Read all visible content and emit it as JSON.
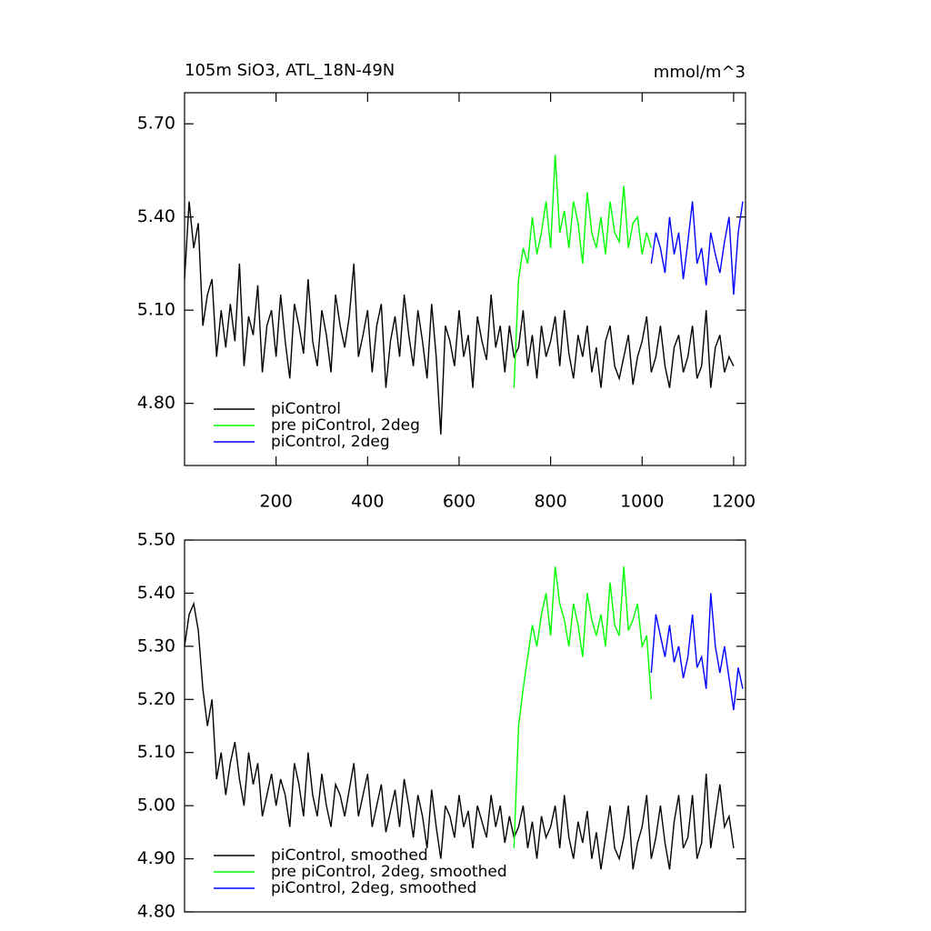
{
  "chart_data": [
    {
      "type": "line",
      "title": "105m SiO3, ATL_18N-49N",
      "units": "mmol/m^3",
      "xlim": [
        0,
        1226
      ],
      "xticks": [
        200,
        400,
        600,
        800,
        1000,
        1200
      ],
      "ylim": [
        4.6,
        5.8
      ],
      "yticks": [
        {
          "value": 4.8,
          "label": "4.80"
        },
        {
          "value": 5.1,
          "label": "5.10"
        },
        {
          "value": 5.4,
          "label": "5.40"
        },
        {
          "value": 5.7,
          "label": "5.70"
        }
      ],
      "legend": "lower left",
      "series": [
        {
          "name": "piControl",
          "color": "#000000",
          "x": [
            0,
            10,
            20,
            30,
            40,
            50,
            60,
            70,
            80,
            90,
            100,
            110,
            120,
            130,
            140,
            150,
            160,
            170,
            180,
            190,
            200,
            210,
            220,
            230,
            240,
            250,
            260,
            270,
            280,
            290,
            300,
            310,
            320,
            330,
            340,
            350,
            360,
            370,
            380,
            390,
            400,
            410,
            420,
            430,
            440,
            450,
            460,
            470,
            480,
            490,
            500,
            510,
            520,
            530,
            540,
            550,
            560,
            570,
            580,
            590,
            600,
            610,
            620,
            630,
            640,
            650,
            660,
            670,
            680,
            690,
            700,
            710,
            720,
            730,
            740,
            750,
            760,
            770,
            780,
            790,
            800,
            810,
            820,
            830,
            840,
            850,
            860,
            870,
            880,
            890,
            900,
            910,
            920,
            930,
            940,
            950,
            960,
            970,
            980,
            990,
            1000,
            1010,
            1020,
            1030,
            1040,
            1050,
            1060,
            1070,
            1080,
            1090,
            1100,
            1110,
            1120,
            1130,
            1140,
            1150,
            1160,
            1170,
            1180,
            1190,
            1200
          ],
          "values": [
            5.2,
            5.45,
            5.3,
            5.38,
            5.05,
            5.15,
            5.2,
            4.95,
            5.1,
            4.98,
            5.12,
            5.0,
            5.25,
            4.92,
            5.08,
            5.02,
            5.18,
            4.9,
            5.05,
            5.1,
            4.95,
            5.15,
            5.0,
            4.88,
            5.12,
            5.05,
            4.96,
            5.2,
            5.0,
            4.92,
            5.1,
            5.02,
            4.9,
            5.15,
            5.05,
            4.98,
            5.08,
            5.25,
            4.95,
            5.02,
            5.1,
            4.9,
            5.05,
            5.12,
            4.85,
            5.0,
            5.08,
            4.95,
            5.15,
            5.02,
            4.92,
            5.1,
            5.0,
            4.88,
            5.12,
            4.95,
            4.7,
            5.05,
            5.0,
            4.92,
            5.1,
            4.95,
            5.02,
            4.85,
            5.08,
            5.0,
            4.94,
            5.15,
            4.98,
            5.05,
            4.9,
            5.05,
            4.95,
            4.98,
            5.1,
            4.92,
            5.02,
            4.88,
            5.05,
            4.95,
            5.0,
            5.08,
            4.92,
            5.1,
            4.96,
            4.88,
            5.02,
            4.95,
            5.05,
            4.9,
            4.98,
            4.85,
            5.0,
            5.05,
            4.92,
            4.88,
            4.95,
            5.02,
            4.86,
            4.95,
            5.0,
            5.08,
            4.9,
            4.95,
            5.05,
            4.92,
            4.85,
            4.98,
            5.02,
            4.9,
            4.95,
            5.05,
            4.88,
            4.92,
            5.1,
            4.85,
            4.98,
            5.02,
            4.9,
            4.95,
            4.92
          ]
        },
        {
          "name": "pre piControl, 2deg",
          "color": "#00ff00",
          "x": [
            720,
            730,
            740,
            750,
            760,
            770,
            780,
            790,
            800,
            810,
            820,
            830,
            840,
            850,
            860,
            870,
            880,
            890,
            900,
            910,
            920,
            930,
            940,
            950,
            960,
            970,
            980,
            990,
            1000,
            1010,
            1020
          ],
          "values": [
            4.85,
            5.2,
            5.3,
            5.25,
            5.4,
            5.28,
            5.35,
            5.45,
            5.3,
            5.6,
            5.35,
            5.42,
            5.3,
            5.45,
            5.38,
            5.25,
            5.48,
            5.35,
            5.3,
            5.4,
            5.28,
            5.45,
            5.35,
            5.32,
            5.5,
            5.3,
            5.38,
            5.4,
            5.28,
            5.35,
            5.3
          ]
        },
        {
          "name": "piControl, 2deg",
          "color": "#0000ff",
          "x": [
            1020,
            1030,
            1040,
            1050,
            1060,
            1070,
            1080,
            1090,
            1100,
            1110,
            1120,
            1130,
            1140,
            1150,
            1160,
            1170,
            1180,
            1190,
            1200,
            1210,
            1220
          ],
          "values": [
            5.25,
            5.35,
            5.3,
            5.22,
            5.4,
            5.28,
            5.35,
            5.2,
            5.32,
            5.45,
            5.25,
            5.3,
            5.18,
            5.35,
            5.28,
            5.22,
            5.32,
            5.4,
            5.15,
            5.35,
            5.45
          ]
        }
      ]
    },
    {
      "type": "line",
      "xlim": [
        0,
        1226
      ],
      "ylim": [
        4.8,
        5.5
      ],
      "yticks": [
        {
          "value": 4.8,
          "label": "4.80"
        },
        {
          "value": 4.9,
          "label": "4.90"
        },
        {
          "value": 5.0,
          "label": "5.00"
        },
        {
          "value": 5.1,
          "label": "5.10"
        },
        {
          "value": 5.2,
          "label": "5.20"
        },
        {
          "value": 5.3,
          "label": "5.30"
        },
        {
          "value": 5.4,
          "label": "5.40"
        },
        {
          "value": 5.5,
          "label": "5.50"
        }
      ],
      "legend": "lower left",
      "series": [
        {
          "name": "piControl, smoothed",
          "color": "#000000",
          "x": [
            0,
            10,
            20,
            30,
            40,
            50,
            60,
            70,
            80,
            90,
            100,
            110,
            120,
            130,
            140,
            150,
            160,
            170,
            180,
            190,
            200,
            210,
            220,
            230,
            240,
            250,
            260,
            270,
            280,
            290,
            300,
            310,
            320,
            330,
            340,
            350,
            360,
            370,
            380,
            390,
            400,
            410,
            420,
            430,
            440,
            450,
            460,
            470,
            480,
            490,
            500,
            510,
            520,
            530,
            540,
            550,
            560,
            570,
            580,
            590,
            600,
            610,
            620,
            630,
            640,
            650,
            660,
            670,
            680,
            690,
            700,
            710,
            720,
            730,
            740,
            750,
            760,
            770,
            780,
            790,
            800,
            810,
            820,
            830,
            840,
            850,
            860,
            870,
            880,
            890,
            900,
            910,
            920,
            930,
            940,
            950,
            960,
            970,
            980,
            990,
            1000,
            1010,
            1020,
            1030,
            1040,
            1050,
            1060,
            1070,
            1080,
            1090,
            1100,
            1110,
            1120,
            1130,
            1140,
            1150,
            1160,
            1170,
            1180,
            1190,
            1200
          ],
          "values": [
            5.3,
            5.36,
            5.38,
            5.33,
            5.22,
            5.15,
            5.2,
            5.05,
            5.1,
            5.02,
            5.08,
            5.12,
            5.05,
            5.0,
            5.1,
            5.04,
            5.08,
            4.98,
            5.02,
            5.06,
            5.0,
            5.05,
            5.02,
            4.96,
            5.08,
            5.04,
            4.98,
            5.1,
            5.02,
            4.98,
            5.06,
            5.0,
            4.96,
            5.04,
            5.02,
            4.98,
            5.03,
            5.08,
            4.98,
            5.02,
            5.06,
            4.96,
            5.0,
            5.04,
            4.95,
            4.99,
            5.03,
            4.96,
            5.05,
            5.0,
            4.94,
            5.02,
            4.98,
            4.92,
            5.03,
            4.96,
            4.9,
            5.0,
            4.98,
            4.94,
            5.02,
            4.96,
            4.99,
            4.92,
            5.0,
            4.97,
            4.94,
            5.02,
            4.96,
            5.0,
            4.93,
            4.98,
            4.94,
            4.96,
            5.0,
            4.92,
            4.97,
            4.9,
            4.98,
            4.94,
            4.96,
            5.0,
            4.92,
            5.02,
            4.94,
            4.9,
            4.97,
            4.93,
            4.99,
            4.9,
            4.95,
            4.88,
            4.94,
            5.0,
            4.92,
            4.9,
            4.94,
            5.0,
            4.88,
            4.93,
            4.96,
            5.02,
            4.9,
            4.94,
            5.0,
            4.93,
            4.88,
            4.97,
            5.02,
            4.92,
            4.94,
            5.02,
            4.9,
            4.93,
            5.06,
            4.92,
            4.98,
            5.04,
            4.96,
            4.98,
            4.92
          ]
        },
        {
          "name": "pre piControl, 2deg, smoothed",
          "color": "#00ff00",
          "x": [
            720,
            730,
            740,
            750,
            760,
            770,
            780,
            790,
            800,
            810,
            820,
            830,
            840,
            850,
            860,
            870,
            880,
            890,
            900,
            910,
            920,
            930,
            940,
            950,
            960,
            970,
            980,
            990,
            1000,
            1010,
            1020
          ],
          "values": [
            4.92,
            5.15,
            5.22,
            5.28,
            5.34,
            5.3,
            5.36,
            5.4,
            5.32,
            5.45,
            5.38,
            5.35,
            5.3,
            5.38,
            5.34,
            5.28,
            5.4,
            5.35,
            5.32,
            5.36,
            5.3,
            5.42,
            5.34,
            5.32,
            5.45,
            5.33,
            5.35,
            5.38,
            5.3,
            5.32,
            5.2
          ]
        },
        {
          "name": "piControl, 2deg, smoothed",
          "color": "#0000ff",
          "x": [
            1020,
            1030,
            1040,
            1050,
            1060,
            1070,
            1080,
            1090,
            1100,
            1110,
            1120,
            1130,
            1140,
            1150,
            1160,
            1170,
            1180,
            1190,
            1200,
            1210,
            1220
          ],
          "values": [
            5.25,
            5.36,
            5.32,
            5.28,
            5.34,
            5.27,
            5.3,
            5.24,
            5.28,
            5.36,
            5.26,
            5.28,
            5.22,
            5.4,
            5.3,
            5.25,
            5.3,
            5.24,
            5.18,
            5.26,
            5.22
          ]
        }
      ]
    }
  ]
}
